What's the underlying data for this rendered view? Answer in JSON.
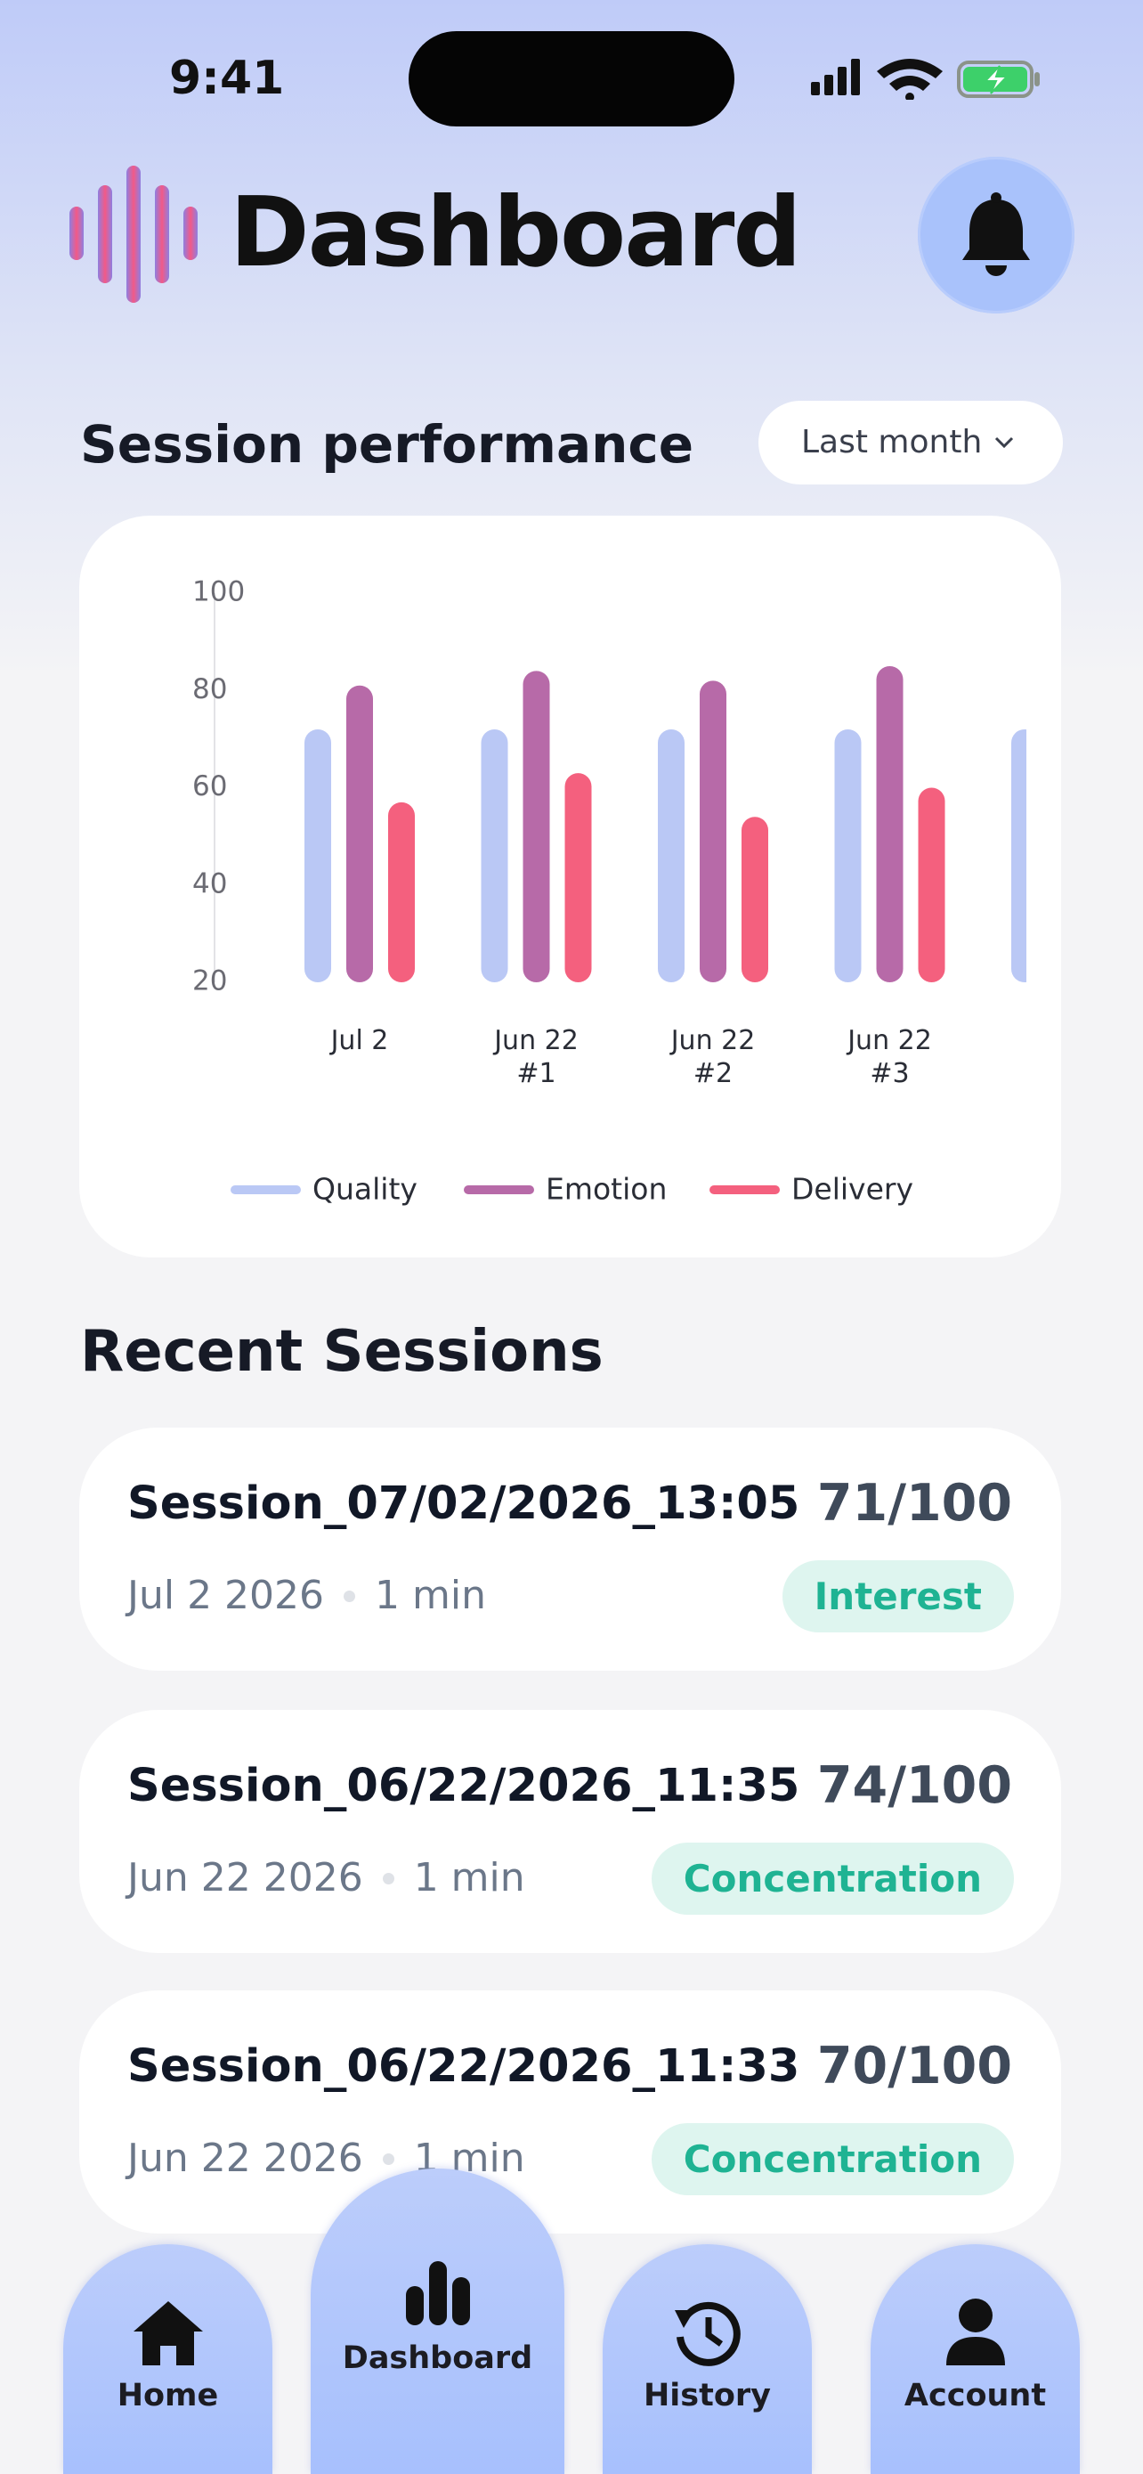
{
  "status_bar": {
    "time": "9:41"
  },
  "header": {
    "title": "Dashboard"
  },
  "performance": {
    "title": "Session performance",
    "period": "Last month"
  },
  "chart_data": {
    "type": "bar",
    "categories": [
      "Jul 2",
      "Jun 22\n#1",
      "Jun 22\n#2",
      "Jun 22\n#3",
      null
    ],
    "series": [
      {
        "name": "Quality",
        "color": "#bac8f5",
        "values": [
          72,
          72,
          72,
          72,
          72
        ]
      },
      {
        "name": "Emotion",
        "color": "#b76aa8",
        "values": [
          81,
          84,
          82,
          85,
          null
        ]
      },
      {
        "name": "Delivery",
        "color": "#f4607e",
        "values": [
          57,
          63,
          54,
          60,
          null
        ]
      }
    ],
    "ylim": [
      20,
      100
    ],
    "yticks": [
      20,
      40,
      60,
      80,
      100
    ],
    "grid": false,
    "legend": "bottom"
  },
  "recent": {
    "title": "Recent Sessions",
    "sessions": [
      {
        "name": "Session_07/02/2026_13:05",
        "date": "Jul 2 2026",
        "duration": "1 min",
        "score": "71/100",
        "tag": "Interest"
      },
      {
        "name": "Session_06/22/2026_11:35",
        "date": "Jun 22 2026",
        "duration": "1 min",
        "score": "74/100",
        "tag": "Concentration"
      },
      {
        "name": "Session_06/22/2026_11:33",
        "date": "Jun 22 2026",
        "duration": "1 min",
        "score": "70/100",
        "tag": "Concentration"
      }
    ]
  },
  "nav": [
    "Home",
    "Dashboard",
    "History",
    "Account"
  ]
}
